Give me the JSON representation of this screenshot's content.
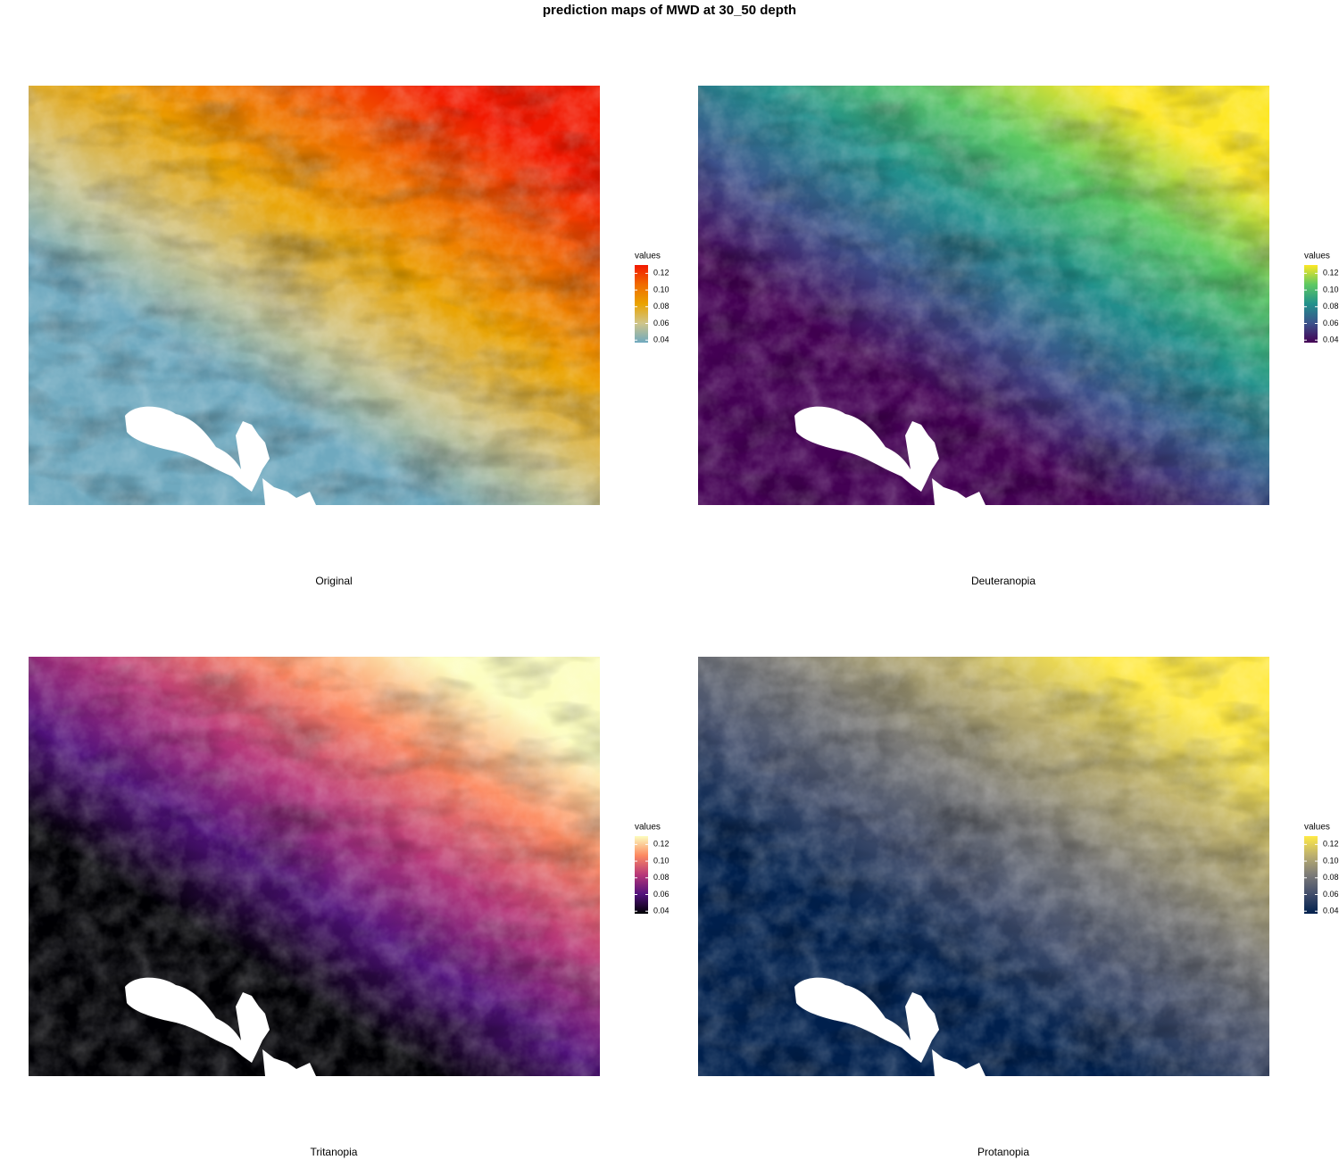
{
  "title": "prediction maps of MWD at 30_50 depth",
  "panels": [
    {
      "caption": "Original",
      "legend_title": "values",
      "colors": [
        "#6fa9bf",
        "#cfc58a",
        "#eaa300",
        "#f06a00",
        "#f21800"
      ],
      "legend_lim": [
        0.037,
        0.13
      ],
      "legend_ticks": [
        0.04,
        0.06,
        0.08,
        {
          "value": 0.1,
          "label": "0.10"
        },
        0.12
      ]
    },
    {
      "caption": "Deuteranopia",
      "legend_title": "values",
      "colors": [
        "#440154",
        "#3b528b",
        "#21918c",
        "#5ec962",
        "#fde725"
      ],
      "legend_lim": [
        0.037,
        0.13
      ],
      "legend_ticks": [
        0.04,
        0.06,
        0.08,
        {
          "value": 0.1,
          "label": "0.10"
        },
        0.12
      ]
    },
    {
      "caption": "Tritanopia",
      "legend_title": "values",
      "colors": [
        "#000004",
        "#51127c",
        "#b73779",
        "#fc8961",
        "#fcfdbf"
      ],
      "legend_lim": [
        0.037,
        0.13
      ],
      "legend_ticks": [
        0.04,
        0.06,
        0.08,
        {
          "value": 0.1,
          "label": "0.10"
        },
        0.12
      ]
    },
    {
      "caption": "Protanopia",
      "legend_title": "values",
      "colors": [
        "#00204d",
        "#414d6b",
        "#7c7b78",
        "#bcaf6f",
        "#ffea46"
      ],
      "legend_lim": [
        0.037,
        0.13
      ],
      "legend_ticks": [
        0.04,
        0.06,
        0.08,
        {
          "value": 0.1,
          "label": "0.10"
        },
        0.12
      ]
    }
  ]
}
